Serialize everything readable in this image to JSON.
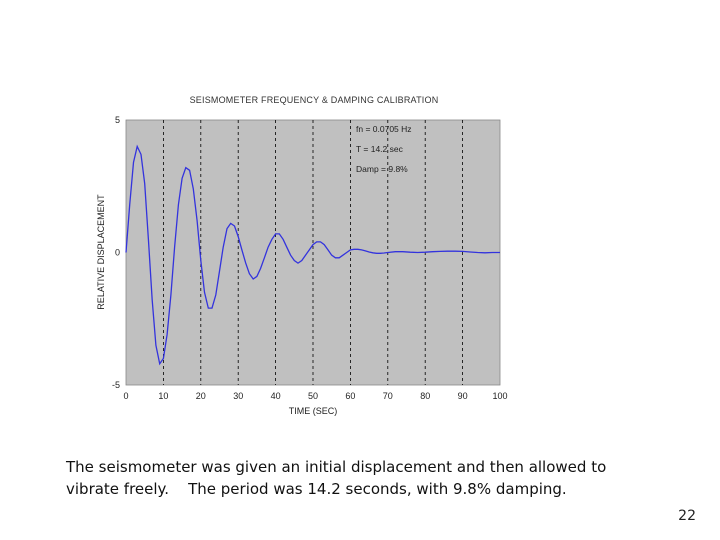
{
  "caption": {
    "line1": "The seismometer was given an initial displacement and then allowed to",
    "line2": "vibrate freely.    The period was 14.2 seconds, with 9.8% damping."
  },
  "page_number": "22",
  "colors": {
    "plot_background": "#c0c0c0",
    "line": "#3333dd",
    "grid": "#000000"
  },
  "chart_data": {
    "type": "line",
    "title": "SEISMOMETER FREQUENCY & DAMPING CALIBRATION",
    "xlabel": "TIME (SEC)",
    "ylabel": "RELATIVE DISPLACEMENT",
    "xlim": [
      0,
      100
    ],
    "ylim": [
      -5,
      5
    ],
    "x_ticks": [
      0,
      10,
      20,
      30,
      40,
      50,
      60,
      70,
      80,
      90,
      100
    ],
    "y_ticks": [
      -5,
      0,
      5
    ],
    "grid": "vertical dashed lines at x ticks",
    "annotations": [
      "fn = 0.0705 Hz",
      "T = 14.2 sec",
      "Damp = 9.8%"
    ],
    "series": [
      {
        "values": [
          [
            0,
            0
          ],
          [
            1,
            1.8
          ],
          [
            2,
            3.4
          ],
          [
            3,
            4.0
          ],
          [
            4,
            3.7
          ],
          [
            5,
            2.6
          ],
          [
            6,
            0.5
          ],
          [
            7,
            -1.8
          ],
          [
            8,
            -3.5
          ],
          [
            9,
            -4.2
          ],
          [
            10,
            -4.0
          ],
          [
            11,
            -3.1
          ],
          [
            12,
            -1.6
          ],
          [
            13,
            0.2
          ],
          [
            14,
            1.8
          ],
          [
            15,
            2.8
          ],
          [
            16,
            3.2
          ],
          [
            17,
            3.1
          ],
          [
            18,
            2.4
          ],
          [
            19,
            1.2
          ],
          [
            20,
            -0.3
          ],
          [
            21,
            -1.5
          ],
          [
            22,
            -2.1
          ],
          [
            23,
            -2.1
          ],
          [
            24,
            -1.6
          ],
          [
            25,
            -0.7
          ],
          [
            26,
            0.2
          ],
          [
            27,
            0.9
          ],
          [
            28,
            1.1
          ],
          [
            29,
            1.0
          ],
          [
            30,
            0.6
          ],
          [
            31,
            0.1
          ],
          [
            32,
            -0.4
          ],
          [
            33,
            -0.8
          ],
          [
            34,
            -1.0
          ],
          [
            35,
            -0.9
          ],
          [
            36,
            -0.6
          ],
          [
            37,
            -0.2
          ],
          [
            38,
            0.2
          ],
          [
            39,
            0.5
          ],
          [
            40,
            0.7
          ],
          [
            41,
            0.7
          ],
          [
            42,
            0.5
          ],
          [
            43,
            0.2
          ],
          [
            44,
            -0.1
          ],
          [
            45,
            -0.3
          ],
          [
            46,
            -0.4
          ],
          [
            47,
            -0.3
          ],
          [
            48,
            -0.1
          ],
          [
            49,
            0.1
          ],
          [
            50,
            0.3
          ],
          [
            51,
            0.4
          ],
          [
            52,
            0.4
          ],
          [
            53,
            0.3
          ],
          [
            54,
            0.1
          ],
          [
            55,
            -0.1
          ],
          [
            56,
            -0.2
          ],
          [
            57,
            -0.2
          ],
          [
            58,
            -0.1
          ],
          [
            59,
            0.0
          ],
          [
            60,
            0.1
          ],
          [
            61,
            0.12
          ],
          [
            62,
            0.12
          ],
          [
            63,
            0.1
          ],
          [
            64,
            0.06
          ],
          [
            65,
            0.02
          ],
          [
            66,
            -0.01
          ],
          [
            67,
            -0.03
          ],
          [
            68,
            -0.03
          ],
          [
            69,
            -0.02
          ],
          [
            70,
            0.0
          ],
          [
            72,
            0.03
          ],
          [
            74,
            0.03
          ],
          [
            76,
            0.01
          ],
          [
            78,
            0.0
          ],
          [
            80,
            0.01
          ],
          [
            82,
            0.03
          ],
          [
            84,
            0.04
          ],
          [
            86,
            0.05
          ],
          [
            88,
            0.05
          ],
          [
            90,
            0.04
          ],
          [
            92,
            0.02
          ],
          [
            94,
            0.0
          ],
          [
            96,
            -0.01
          ],
          [
            98,
            0.0
          ],
          [
            100,
            0.0
          ]
        ]
      }
    ]
  }
}
